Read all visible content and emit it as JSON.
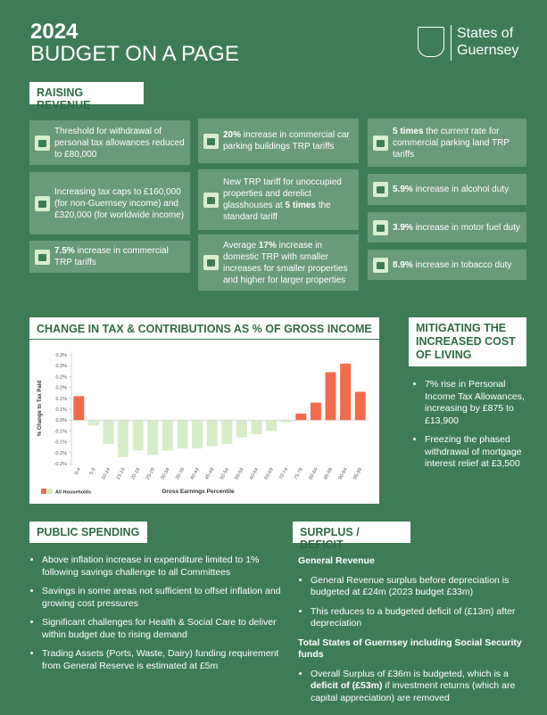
{
  "header": {
    "year": "2024",
    "title": "BUDGET ON A PAGE",
    "logo": [
      "States of",
      "Guernsey"
    ]
  },
  "raising_revenue": {
    "title": "RAISING REVENUE",
    "items": [
      [
        {
          "text": "Threshold for withdrawal of personal tax allowances reduced to £80,000"
        }
      ],
      [
        {
          "text": "Increasing tax caps to £160,000 (for non-Guernsey income) and £320,000 (for worldwide income)"
        }
      ],
      [
        {
          "text": "7.5%",
          "bold": true
        },
        {
          "text": " increase in commercial TRP tariffs"
        }
      ],
      [
        {
          "text": "20%",
          "bold": true
        },
        {
          "text": " increase in commercial car parking buildings TRP tariffs"
        }
      ],
      [
        {
          "text": "New TRP tariff for unoccupied properties and derelict glasshouses at "
        },
        {
          "text": "5 times",
          "bold": true
        },
        {
          "text": " the standard tariff"
        }
      ],
      [
        {
          "text": "Average "
        },
        {
          "text": "17%",
          "bold": true
        },
        {
          "text": " increase in domestic TRP with smaller increases for smaller properties and higher for larger properties"
        }
      ],
      [
        {
          "text": "5 times",
          "bold": true
        },
        {
          "text": " the current rate for commercial parking land TRP tariffs"
        }
      ],
      [
        {
          "text": "5.9%",
          "bold": true
        },
        {
          "text": " increase in alcohol duty"
        }
      ],
      [
        {
          "text": "3.9%",
          "bold": true
        },
        {
          "text": " increase in motor fuel duty"
        }
      ],
      [
        {
          "text": "8.9%",
          "bold": true
        },
        {
          "text": " increase in tobacco duty"
        }
      ]
    ]
  },
  "chart_data": {
    "type": "bar",
    "title": "CHANGE IN TAX & CONTRIBUTIONS AS % OF GROSS INCOME",
    "y_label": "% Change to Tax Paid",
    "x_label": "Gross Earnings Percentile",
    "categories": [
      "0-4",
      "5-9",
      "10-14",
      "15-19",
      "20-24",
      "25-29",
      "30-34",
      "35-39",
      "40-44",
      "45-49",
      "50-54",
      "55-59",
      "60-64",
      "65-69",
      "70-74",
      "75-79",
      "80-84",
      "85-89",
      "90-94",
      "95-99"
    ],
    "series": [
      {
        "name": "All Households",
        "values": [
          0.11,
          -0.025,
          -0.11,
          -0.17,
          -0.14,
          -0.16,
          -0.14,
          -0.13,
          -0.13,
          -0.12,
          -0.11,
          -0.08,
          -0.065,
          -0.05,
          -0.01,
          0.03,
          0.08,
          0.22,
          0.26,
          0.13
        ],
        "colors": {
          "positive": "#f26b4b",
          "negative": "#d6ecc6"
        }
      }
    ],
    "ylim": [
      -0.2,
      0.3
    ],
    "yticks": [
      {
        "value": 0.3,
        "label": "0.3%"
      },
      {
        "value": 0.25,
        "label": "0.3%"
      },
      {
        "value": 0.2,
        "label": "0.2%"
      },
      {
        "value": 0.15,
        "label": "0.2%"
      },
      {
        "value": 0.1,
        "label": "0.1%"
      },
      {
        "value": 0.05,
        "label": "0.1%"
      },
      {
        "value": 0,
        "label": "0.0%"
      },
      {
        "value": -0.05,
        "label": "-0.1%"
      },
      {
        "value": -0.1,
        "label": "-0.1%"
      },
      {
        "value": -0.15,
        "label": "-0.2%"
      },
      {
        "value": -0.2,
        "label": "-0.2%"
      }
    ]
  },
  "mitigating": {
    "title": "MITIGATING THE INCREASED COST OF LIVING",
    "bullets": [
      "7% rise in Personal Income Tax Allowances, increasing by £875 to £13,900",
      "Freezing the phased withdrawal of mortgage interest relief at £3,500"
    ]
  },
  "public_spending": {
    "title": "PUBLIC SPENDING",
    "bullets": [
      "Above inflation increase in expenditure limited to 1% following savings challenge to all Committees",
      "Savings in some areas not sufficient to offset inflation and growing cost pressures",
      "Significant challenges for Health & Social Care to deliver within budget due to rising demand",
      "Trading Assets (Ports, Waste, Dairy) funding requirement from General Reserve is estimated at £5m"
    ]
  },
  "surplus": {
    "title": "SURPLUS / DEFICIT",
    "sections": [
      {
        "heading": "General Revenue",
        "bullets": [
          [
            {
              "text": "General Revenue surplus before depreciation is budgeted at £24m (2023 budget £33m)"
            }
          ],
          [
            {
              "text": "This reduces to a budgeted deficit of (£13m) after depreciation"
            }
          ]
        ]
      },
      {
        "heading": "Total States of Guernsey including Social Security funds",
        "bullets": [
          [
            {
              "text": "Overall Surplus of £36m is budgeted, which is a "
            },
            {
              "text": "deficit of (£53m)",
              "bold": true
            },
            {
              "text": " if investment returns (which are capital appreciation) are removed"
            }
          ]
        ]
      }
    ]
  }
}
